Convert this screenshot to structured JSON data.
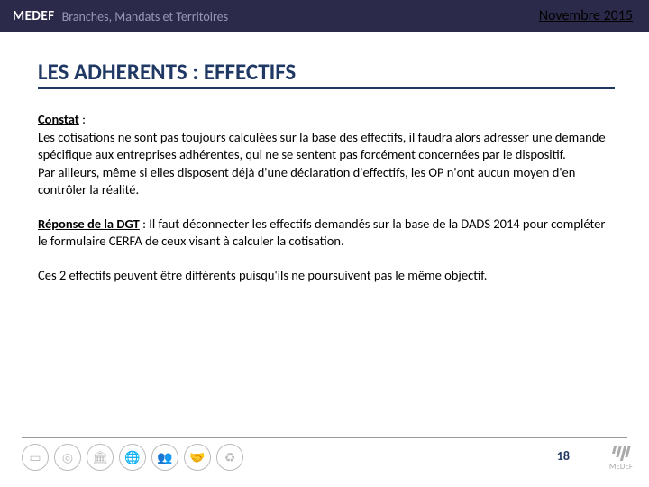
{
  "header": {
    "logo_main": "MEDEF",
    "logo_sub": "Branches, Mandats et Territoires",
    "date": "Novembre 2015"
  },
  "title": "LES ADHERENTS : EFFECTIFS",
  "constat": {
    "label": "Constat",
    "sep": " : ",
    "text": "Les cotisations ne sont pas toujours calculées sur la base des effectifs, il faudra alors adresser une demande spécifique aux entreprises adhérentes, qui ne se sentent pas forcément concernées par le dispositif.\nPar ailleurs, même si elles disposent déjà d'une déclaration d'effectifs, les OP n'ont aucun moyen d'en contrôler la réalité."
  },
  "reponse": {
    "label": "Réponse de la DGT",
    "sep": " : ",
    "text": "Il faut déconnecter les effectifs demandés sur la base de la DADS 2014 pour compléter le formulaire CERFA de ceux visant à calculer la cotisation."
  },
  "note": "Ces 2 effectifs peuvent être différents puisqu'ils ne poursuivent pas le même objectif.",
  "footer": {
    "page": "18",
    "logo_text": "MEDEF",
    "icons": [
      "presentation-icon",
      "target-icon",
      "building-icon",
      "globe-icon",
      "people-icon",
      "handshake-icon",
      "cycle-icon"
    ]
  },
  "colors": {
    "header_bg": "#2c2a4a",
    "title_color": "#203864",
    "text_color": "#000000",
    "icon_color": "#bbbbbb"
  }
}
